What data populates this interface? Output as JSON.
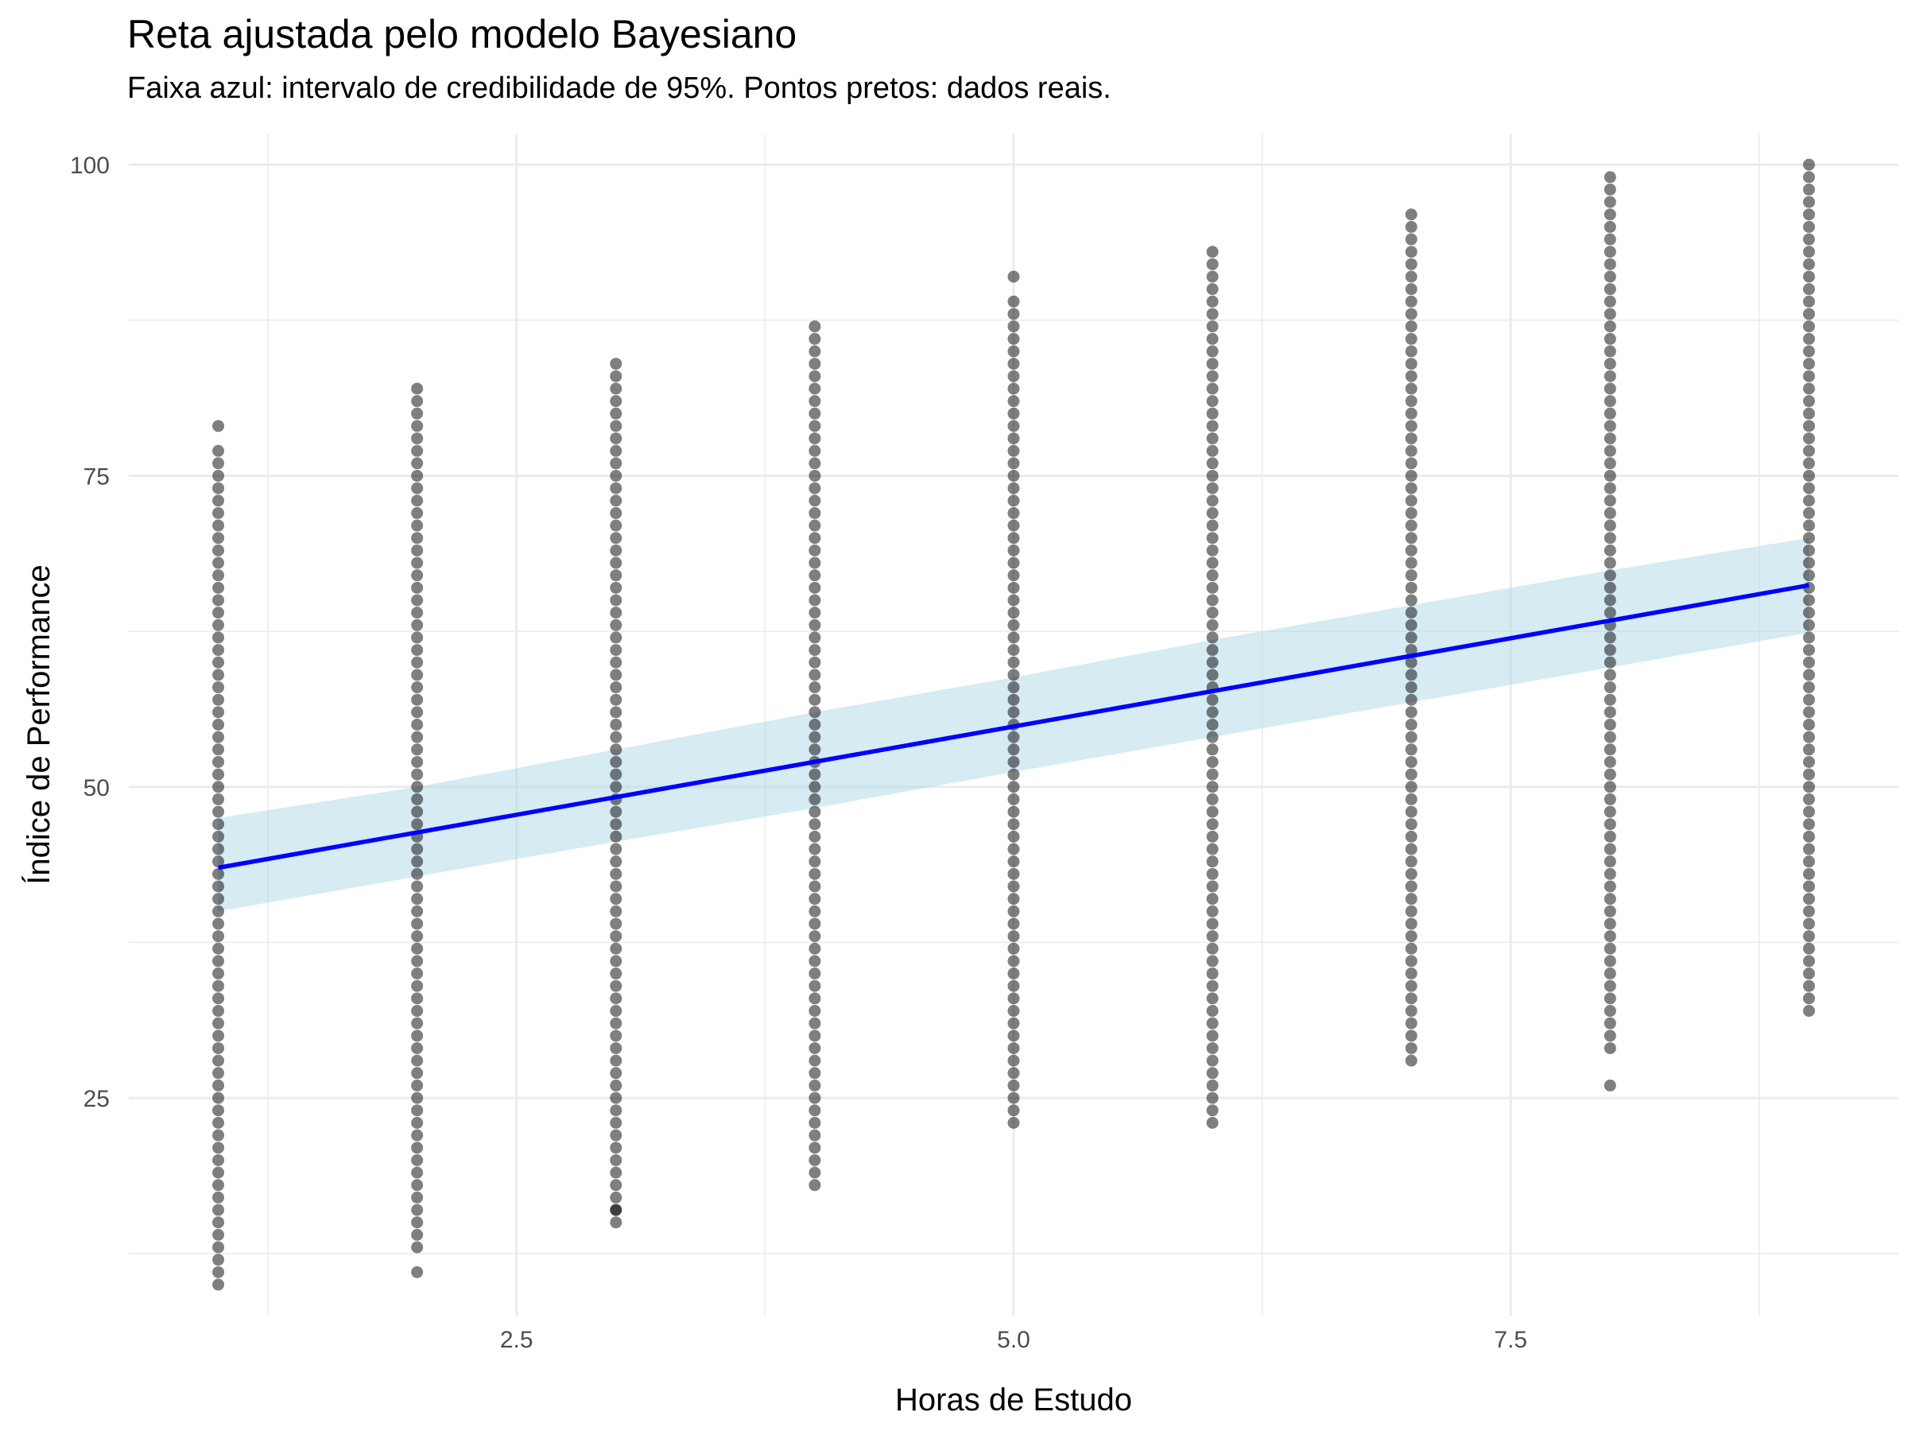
{
  "chart_data": {
    "type": "scatter",
    "title": "Reta ajustada pelo modelo Bayesiano",
    "subtitle": "Faixa azul: intervalo de credibilidade de 95%. Pontos pretos: dados reais.",
    "xlabel": "Horas de Estudo",
    "ylabel": "Índice de Performance",
    "xlim": [
      0.55,
      9.45
    ],
    "ylim": [
      7.5,
      102.5
    ],
    "x_ticks": [
      2.5,
      5.0,
      7.5
    ],
    "x_tick_labels": [
      "2.5",
      "5.0",
      "7.5"
    ],
    "y_ticks": [
      25,
      50,
      75,
      100
    ],
    "y_tick_labels": [
      "25",
      "50",
      "75",
      "100"
    ],
    "grid": true,
    "legend": "none",
    "colors": {
      "points": "#000000",
      "line": "#0000ff",
      "band": "#add8e6",
      "grid": "#ebebeb"
    },
    "points": [
      {
        "x": 1,
        "ymin": 10,
        "ymax": 77,
        "outliers": [
          79
        ]
      },
      {
        "x": 2,
        "ymin": 13,
        "ymax": 80,
        "outliers": [
          11,
          81,
          82
        ]
      },
      {
        "x": 3,
        "ymin": 15,
        "ymax": 81,
        "outliers": [
          16,
          82,
          83,
          84
        ]
      },
      {
        "x": 4,
        "ymin": 19,
        "ymax": 87,
        "outliers": [
          18
        ]
      },
      {
        "x": 5,
        "ymin": 23,
        "ymax": 89,
        "outliers": [
          91
        ]
      },
      {
        "x": 6,
        "ymin": 24,
        "ymax": 92,
        "outliers": [
          23,
          93
        ]
      },
      {
        "x": 7,
        "ymin": 28,
        "ymax": 95,
        "outliers": [
          96
        ]
      },
      {
        "x": 8,
        "ymin": 31,
        "ymax": 97,
        "outliers": [
          26,
          29,
          30,
          98,
          99
        ]
      },
      {
        "x": 9,
        "ymin": 32,
        "ymax": 100,
        "outliers": []
      }
    ],
    "fit_line": {
      "x": [
        1,
        9
      ],
      "y": [
        43.5,
        66.2
      ]
    },
    "credible_band": {
      "x": [
        1,
        2,
        3,
        4,
        5,
        6,
        7,
        8,
        9
      ],
      "lower": [
        40.0,
        42.8,
        45.6,
        48.3,
        51.2,
        54.0,
        56.8,
        59.6,
        62.4
      ],
      "upper": [
        47.5,
        50.0,
        53.0,
        56.0,
        58.8,
        61.8,
        64.6,
        67.4,
        70.0
      ]
    }
  }
}
